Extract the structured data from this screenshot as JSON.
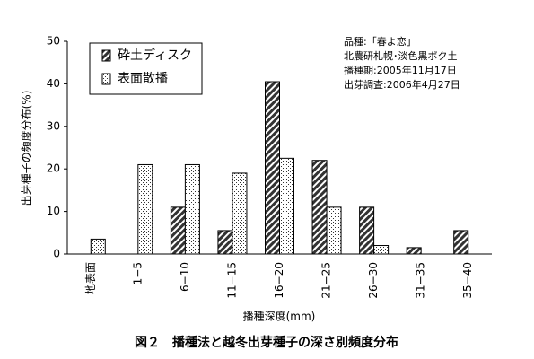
{
  "chart_data": {
    "type": "bar",
    "title": "図２　播種法と越冬出芽種子の深さ別頻度分布",
    "x_label": "播種深度(mm)",
    "y_label": "出芽種子の頻度分布(%)",
    "annotations": [
      "品種:「春よ恋」",
      "北農研札幌･淡色黒ボク土",
      "播種期:2005年11月17日",
      "出芽調査:2006年4月27日"
    ],
    "categories": [
      "地表面",
      "1−5",
      "6−10",
      "11−15",
      "16−20",
      "21−25",
      "26−30",
      "31−35",
      "35−40"
    ],
    "series": [
      {
        "name": "砕土ディスク",
        "pattern": "hatch",
        "values": [
          0,
          0,
          11,
          5.5,
          40.5,
          22,
          11,
          1.5,
          5.5
        ]
      },
      {
        "name": "表面散播",
        "pattern": "dots",
        "values": [
          3.5,
          21,
          21,
          19,
          22.5,
          11,
          2,
          0,
          0
        ]
      }
    ],
    "ylim": [
      0,
      50
    ],
    "yticks": [
      0,
      10,
      20,
      30,
      40,
      50
    ],
    "grid": false
  }
}
